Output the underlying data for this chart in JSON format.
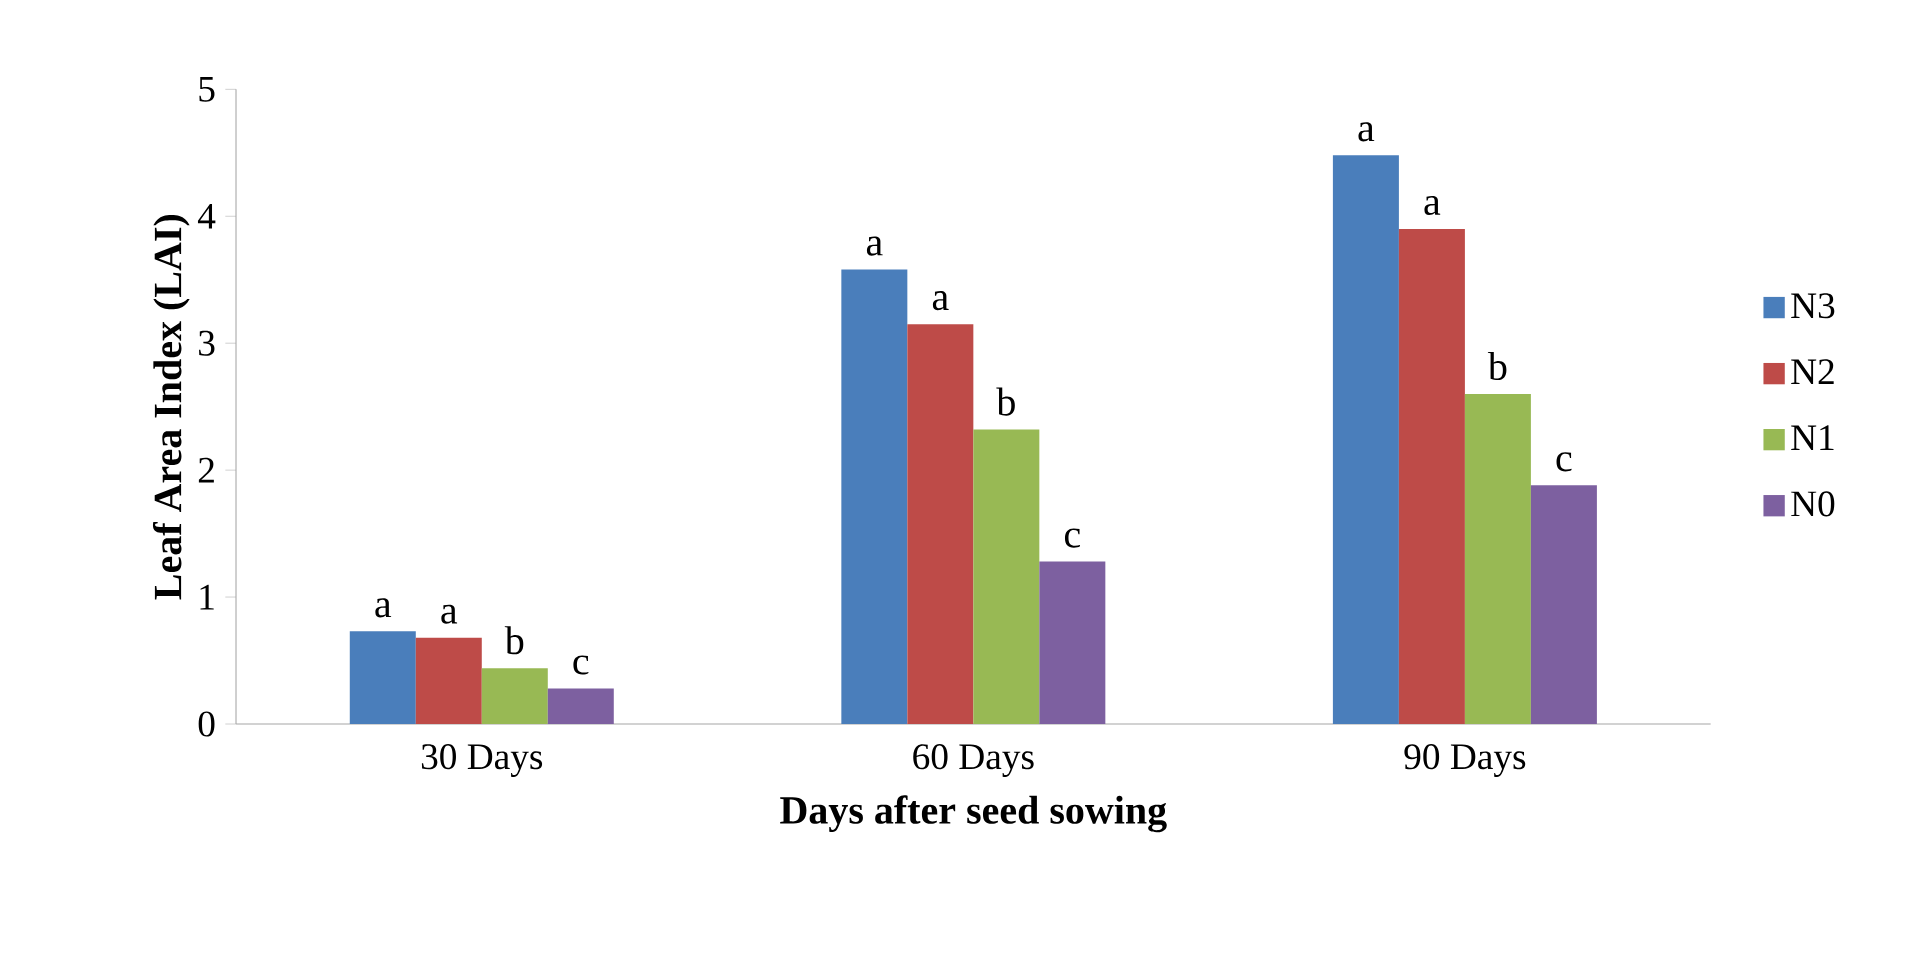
{
  "chart_data": {
    "type": "bar",
    "xlabel": "Days after seed sowing",
    "ylabel": "Leaf Area Index (LAI)",
    "categories": [
      "30 Days",
      "60 Days",
      "90 Days"
    ],
    "series": [
      {
        "name": "N3",
        "color": "#4a7ebb",
        "values": [
          0.73,
          3.58,
          4.48
        ]
      },
      {
        "name": "N2",
        "color": "#be4b48",
        "values": [
          0.68,
          3.15,
          3.9
        ]
      },
      {
        "name": "N1",
        "color": "#98b954",
        "values": [
          0.44,
          2.32,
          2.6
        ]
      },
      {
        "name": "N0",
        "color": "#7d60a0",
        "values": [
          0.28,
          1.28,
          1.88
        ]
      }
    ],
    "ylim": [
      0,
      5
    ],
    "yticks": [
      0,
      1,
      2,
      3,
      4,
      5
    ],
    "grid": false,
    "legend": "right",
    "annotations": [
      "a",
      "a",
      "b",
      "c",
      "a",
      "a",
      "b",
      "c",
      "a",
      "a",
      "b",
      "c"
    ]
  }
}
